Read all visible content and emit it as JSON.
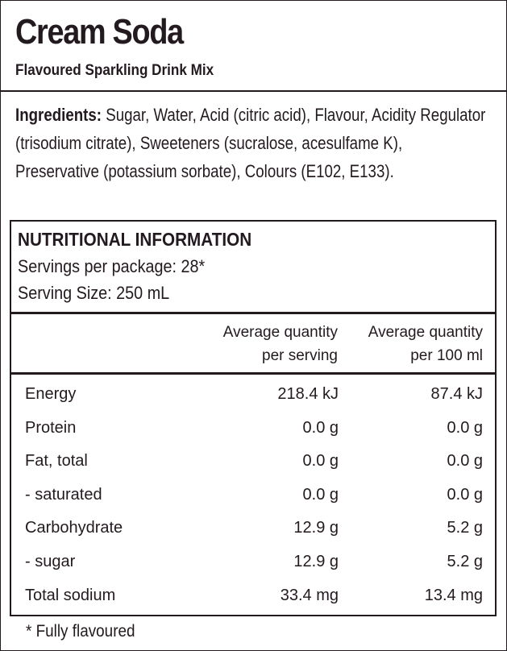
{
  "product": {
    "title": "Cream Soda",
    "subtitle": "Flavoured Sparkling Drink Mix"
  },
  "ingredients": {
    "label": "Ingredients:",
    "text": " Sugar, Water, Acid (citric acid), Flavour, Acidity Regulator (trisodium citrate), Sweeteners (sucralose, acesulfame K), Preservative (potassium sorbate), Colours (E102, E133)."
  },
  "nutrition": {
    "heading": "NUTRITIONAL INFORMATION",
    "servings_per_package": "Servings per package: 28*",
    "serving_size": "Serving Size: 250 mL",
    "col_per_serving_line1": "Average quantity",
    "col_per_serving_line2": "per serving",
    "col_per_100_line1": "Average quantity",
    "col_per_100_line2": "per 100 ml",
    "rows": [
      {
        "name": "Energy",
        "per_serving": "218.4 kJ",
        "per_100": "87.4 kJ"
      },
      {
        "name": "Protein",
        "per_serving": "0.0 g",
        "per_100": "0.0 g"
      },
      {
        "name": "Fat, total",
        "per_serving": "0.0 g",
        "per_100": "0.0 g"
      },
      {
        "name": "- saturated",
        "per_serving": "0.0 g",
        "per_100": "0.0 g"
      },
      {
        "name": "Carbohydrate",
        "per_serving": "12.9 g",
        "per_100": "5.2 g"
      },
      {
        "name": "- sugar",
        "per_serving": "12.9 g",
        "per_100": "5.2 g"
      },
      {
        "name": "Total sodium",
        "per_serving": "33.4 mg",
        "per_100": "13.4 mg"
      }
    ]
  },
  "footnote": "* Fully flavoured",
  "colors": {
    "ink": "#231a20",
    "background": "#ffffff"
  }
}
